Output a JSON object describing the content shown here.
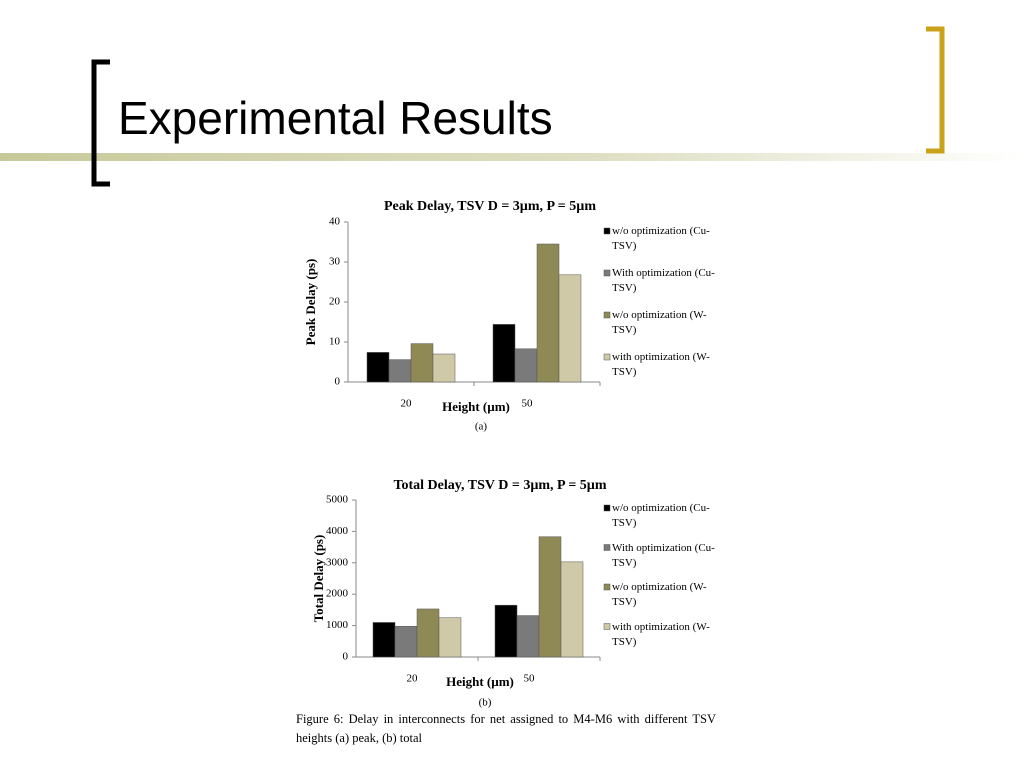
{
  "title": "Experimental Results",
  "caption": "Figure 6: Delay in interconnects for net assigned to M4-M6 with different TSV heights (a) peak, (b) total",
  "chart_data": [
    {
      "type": "bar",
      "title": "Peak Delay, TSV D = 3µm, P = 5µm",
      "x_label": "Height (µm)",
      "y_label": "Peak Delay (ps)",
      "sub_label": "(a)",
      "categories": [
        "20",
        "50"
      ],
      "series": [
        {
          "name": "w/o optimization (Cu-TSV)",
          "color": "#000000",
          "values": [
            7.4,
            14.4
          ]
        },
        {
          "name": "With optimization (Cu-TSV)",
          "color": "#7a7a7a",
          "values": [
            5.6,
            8.3
          ]
        },
        {
          "name": "w/o optimization (W-TSV)",
          "color": "#8f8a55",
          "values": [
            9.6,
            34.5
          ]
        },
        {
          "name": "with optimization (W-TSV)",
          "color": "#cfc9a8",
          "values": [
            7.0,
            26.8
          ]
        }
      ],
      "ylim": [
        0,
        40
      ],
      "yticks": [
        0,
        10,
        20,
        30,
        40
      ],
      "legend": "right"
    },
    {
      "type": "bar",
      "title": "Total Delay, TSV D = 3µm, P = 5µm",
      "x_label": "Height (µm)",
      "y_label": "Total Delay (ps)",
      "sub_label": "(b)",
      "categories": [
        "20",
        "50"
      ],
      "series": [
        {
          "name": "w/o optimization (Cu-TSV)",
          "color": "#000000",
          "values": [
            1100,
            1650
          ]
        },
        {
          "name": "With optimization (Cu-TSV)",
          "color": "#7a7a7a",
          "values": [
            980,
            1320
          ]
        },
        {
          "name": "w/o optimization (W-TSV)",
          "color": "#8f8a55",
          "values": [
            1530,
            3830
          ]
        },
        {
          "name": "with optimization (W-TSV)",
          "color": "#cfc9a8",
          "values": [
            1250,
            3030
          ]
        }
      ],
      "ylim": [
        0,
        5000
      ],
      "yticks": [
        0,
        1000,
        2000,
        3000,
        4000,
        5000
      ],
      "legend": "right"
    }
  ]
}
